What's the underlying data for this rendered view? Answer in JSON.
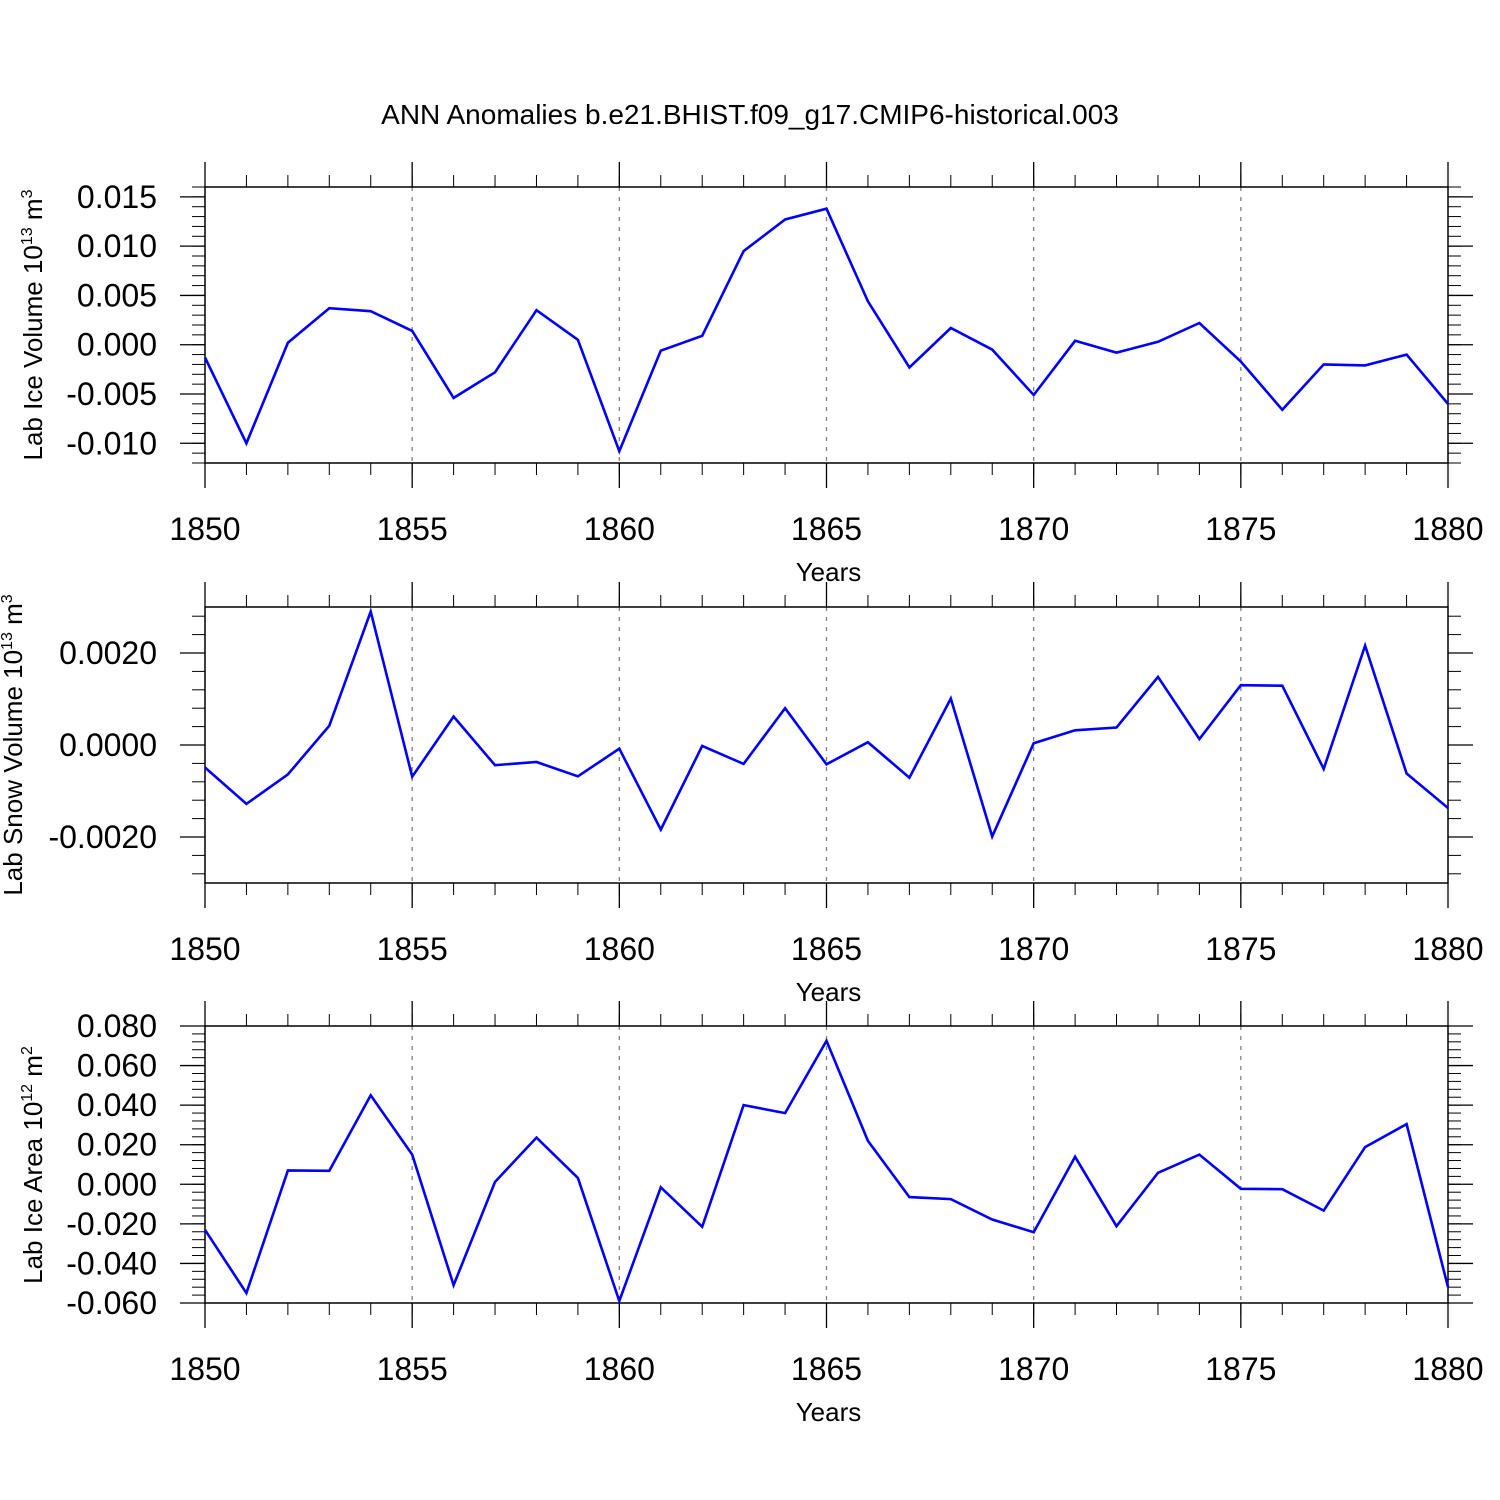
{
  "figure": {
    "title": "ANN Anomalies b.e21.BHIST.f09_g17.CMIP6-historical.003",
    "line_color": "#0000ff",
    "axis_color": "#000000",
    "grid_color": "#808080"
  },
  "chart_data": [
    {
      "type": "line",
      "ylabel_main": "Lab Ice Volume 10",
      "ylabel_exp": "13",
      "ylabel_unit": " m",
      "ylabel_unit_exp": "3",
      "xlabel": "Years",
      "xlim": [
        1850,
        1880
      ],
      "ylim": [
        -0.012,
        0.016
      ],
      "yticks": [
        -0.01,
        -0.005,
        0.0,
        0.005,
        0.01,
        0.015
      ],
      "yticklabels": [
        "-0.010",
        "-0.005",
        "0.000",
        "0.005",
        "0.010",
        "0.015"
      ],
      "xticks": [
        1850,
        1855,
        1860,
        1865,
        1870,
        1875,
        1880
      ],
      "xticklabels": [
        "1850",
        "1855",
        "1860",
        "1865",
        "1870",
        "1875",
        "1880"
      ],
      "grid_x": [
        1855,
        1860,
        1865,
        1870,
        1875
      ],
      "series": [
        {
          "name": "Lab Ice Volume",
          "x": [
            1850,
            1851,
            1852,
            1853,
            1854,
            1855,
            1856,
            1857,
            1858,
            1859,
            1860,
            1861,
            1862,
            1863,
            1864,
            1865,
            1866,
            1867,
            1868,
            1869,
            1870,
            1871,
            1872,
            1873,
            1874,
            1875,
            1876,
            1877,
            1878,
            1879,
            1880
          ],
          "values": [
            -0.0013,
            -0.01,
            0.0002,
            0.0037,
            0.0034,
            0.0014,
            -0.0054,
            -0.0028,
            0.0035,
            0.0005,
            -0.0108,
            -0.0006,
            0.0009,
            0.0095,
            0.0127,
            0.0138,
            0.0044,
            -0.0023,
            0.0017,
            -0.0005,
            -0.0051,
            0.0004,
            -0.0008,
            0.0003,
            0.0022,
            -0.0017,
            -0.0066,
            -0.002,
            -0.0021,
            -0.001,
            -0.006
          ]
        }
      ]
    },
    {
      "type": "line",
      "ylabel_main": "Lab Snow Volume 10",
      "ylabel_exp": "13",
      "ylabel_unit": " m",
      "ylabel_unit_exp": "3",
      "xlabel": "Years",
      "xlim": [
        1850,
        1880
      ],
      "ylim": [
        -0.003,
        0.003
      ],
      "yticks": [
        -0.002,
        0.0,
        0.002
      ],
      "yticklabels": [
        "-0.0020",
        "0.0000",
        "0.0020"
      ],
      "xticks": [
        1850,
        1855,
        1860,
        1865,
        1870,
        1875,
        1880
      ],
      "xticklabels": [
        "1850",
        "1855",
        "1860",
        "1865",
        "1870",
        "1875",
        "1880"
      ],
      "grid_x": [
        1855,
        1860,
        1865,
        1870,
        1875
      ],
      "series": [
        {
          "name": "Lab Snow Volume",
          "x": [
            1850,
            1851,
            1852,
            1853,
            1854,
            1855,
            1856,
            1857,
            1858,
            1859,
            1860,
            1861,
            1862,
            1863,
            1864,
            1865,
            1866,
            1867,
            1868,
            1869,
            1870,
            1871,
            1872,
            1873,
            1874,
            1875,
            1876,
            1877,
            1878,
            1879,
            1880
          ],
          "values": [
            -0.00049,
            -0.00128,
            -0.00064,
            0.00042,
            0.0029,
            -0.00069,
            0.00062,
            -0.00044,
            -0.00037,
            -0.00068,
            -8e-05,
            -0.00184,
            -2e-05,
            -0.00041,
            0.0008,
            -0.00042,
            6e-05,
            -0.00071,
            0.00101,
            -0.00199,
            4e-05,
            0.00032,
            0.00038,
            0.00148,
            0.00013,
            0.0013,
            0.00129,
            -0.00052,
            0.00216,
            -0.00062,
            -0.00137
          ]
        }
      ]
    },
    {
      "type": "line",
      "ylabel_main": "Lab Ice Area 10",
      "ylabel_exp": "12",
      "ylabel_unit": " m",
      "ylabel_unit_exp": "2",
      "xlabel": "Years",
      "xlim": [
        1850,
        1880
      ],
      "ylim": [
        -0.06,
        0.08
      ],
      "yticks": [
        -0.06,
        -0.04,
        -0.02,
        0.0,
        0.02,
        0.04,
        0.06,
        0.08
      ],
      "yticklabels": [
        "-0.060",
        "-0.040",
        "-0.020",
        "0.000",
        "0.020",
        "0.040",
        "0.060",
        "0.080"
      ],
      "xticks": [
        1850,
        1855,
        1860,
        1865,
        1870,
        1875,
        1880
      ],
      "xticklabels": [
        "1850",
        "1855",
        "1860",
        "1865",
        "1870",
        "1875",
        "1880"
      ],
      "grid_x": [
        1855,
        1860,
        1865,
        1870,
        1875
      ],
      "series": [
        {
          "name": "Lab Ice Area",
          "x": [
            1850,
            1851,
            1852,
            1853,
            1854,
            1855,
            1856,
            1857,
            1858,
            1859,
            1860,
            1861,
            1862,
            1863,
            1864,
            1865,
            1866,
            1867,
            1868,
            1869,
            1870,
            1871,
            1872,
            1873,
            1874,
            1875,
            1876,
            1877,
            1878,
            1879,
            1880
          ],
          "values": [
            -0.023,
            -0.055,
            0.007,
            0.0068,
            0.045,
            0.015,
            -0.051,
            0.0012,
            0.0236,
            0.0032,
            -0.059,
            -0.0015,
            -0.0215,
            0.04,
            0.036,
            0.0725,
            0.022,
            -0.0065,
            -0.0075,
            -0.0178,
            -0.0242,
            0.0139,
            -0.0212,
            0.0058,
            0.015,
            -0.0023,
            -0.0025,
            -0.0133,
            0.0188,
            0.0304,
            -0.052
          ]
        }
      ]
    }
  ]
}
